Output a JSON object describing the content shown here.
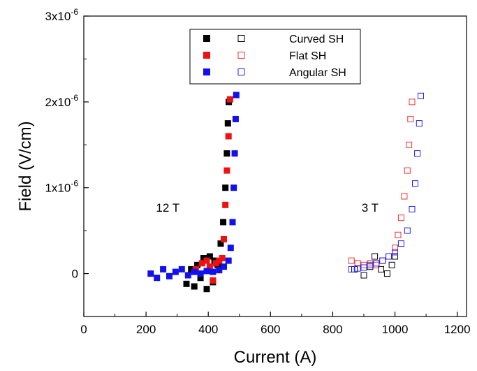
{
  "chart_data": {
    "type": "scatter",
    "xlabel": "Current (A)",
    "ylabel": "Field (V/cm)",
    "xlim": [
      0,
      1230
    ],
    "ylim": [
      -5e-07,
      3e-06
    ],
    "x_ticks": [
      {
        "value": 0,
        "label": "0"
      },
      {
        "value": 200,
        "label": "200"
      },
      {
        "value": 400,
        "label": "400"
      },
      {
        "value": 600,
        "label": "600"
      },
      {
        "value": 800,
        "label": "800"
      },
      {
        "value": 1000,
        "label": "1000"
      },
      {
        "value": 1200,
        "label": "1200"
      }
    ],
    "y_ticks": [
      {
        "value": 0,
        "base": "0",
        "exp": ""
      },
      {
        "value": 1e-06,
        "base": "1x10",
        "exp": "-6"
      },
      {
        "value": 2e-06,
        "base": "2x10",
        "exp": "-6"
      },
      {
        "value": 3e-06,
        "base": "3x10",
        "exp": "-6"
      }
    ],
    "grid": false,
    "legend_position": "top-center",
    "annotations": [
      {
        "text": "12 T",
        "x": 270,
        "y": 7.2e-07
      },
      {
        "text": "3 T",
        "x": 920,
        "y": 7.2e-07
      }
    ],
    "series": [
      {
        "name": "Curved SH",
        "field": "12 T",
        "marker": "filled-square",
        "color": "#000000",
        "points": [
          [
            330,
            -1.2e-07
          ],
          [
            345,
            5e-08
          ],
          [
            355,
            -1.5e-07
          ],
          [
            365,
            1e-07
          ],
          [
            375,
            -5e-08
          ],
          [
            385,
            1.8e-07
          ],
          [
            395,
            -1.8e-07
          ],
          [
            405,
            2e-07
          ],
          [
            415,
            -1e-07
          ],
          [
            420,
            1.5e-07
          ],
          [
            430,
            1e-07
          ],
          [
            440,
            3.5e-07
          ],
          [
            448,
            6e-07
          ],
          [
            455,
            1e-06
          ],
          [
            460,
            1.4e-06
          ],
          [
            463,
            1.75e-06
          ],
          [
            466,
            2e-06
          ]
        ]
      },
      {
        "name": "Flat SH",
        "field": "12 T",
        "marker": "filled-square",
        "color": "#ee1111",
        "points": [
          [
            360,
            5e-08
          ],
          [
            380,
            1.2e-07
          ],
          [
            395,
            1.5e-07
          ],
          [
            405,
            8e-08
          ],
          [
            415,
            -8e-08
          ],
          [
            425,
            1.2e-07
          ],
          [
            435,
            1.5e-07
          ],
          [
            445,
            1.8e-07
          ],
          [
            450,
            4e-07
          ],
          [
            455,
            8e-07
          ],
          [
            460,
            1.2e-06
          ],
          [
            465,
            1.6e-06
          ],
          [
            470,
            2.03e-06
          ]
        ]
      },
      {
        "name": "Angular SH",
        "field": "12 T",
        "marker": "filled-square",
        "color": "#1111ee",
        "points": [
          [
            215,
            0.0
          ],
          [
            235,
            -5e-08
          ],
          [
            255,
            5e-08
          ],
          [
            275,
            -3e-08
          ],
          [
            295,
            2e-08
          ],
          [
            315,
            5e-08
          ],
          [
            335,
            -2e-08
          ],
          [
            355,
            2e-08
          ],
          [
            375,
            0.0
          ],
          [
            395,
            3e-08
          ],
          [
            415,
            2e-08
          ],
          [
            435,
            4e-08
          ],
          [
            450,
            8e-08
          ],
          [
            465,
            1.5e-07
          ],
          [
            472,
            3e-07
          ],
          [
            478,
            6e-07
          ],
          [
            482,
            1e-06
          ],
          [
            485,
            1.4e-06
          ],
          [
            488,
            1.8e-06
          ],
          [
            490,
            2.08e-06
          ]
        ]
      },
      {
        "name": "Curved SH",
        "field": "3 T",
        "marker": "open-square",
        "color": "#000000",
        "points": [
          [
            870,
            5e-08
          ],
          [
            900,
            -2e-08
          ],
          [
            920,
            8e-08
          ],
          [
            935,
            2e-07
          ],
          [
            955,
            5e-08
          ],
          [
            975,
            0.0
          ],
          [
            990,
            1e-07
          ],
          [
            1000,
            2e-07
          ]
        ]
      },
      {
        "name": "Flat SH",
        "field": "3 T",
        "marker": "open-square",
        "color": "#ee3333",
        "points": [
          [
            860,
            1.5e-07
          ],
          [
            880,
            1.2e-07
          ],
          [
            900,
            1e-07
          ],
          [
            920,
            1.2e-07
          ],
          [
            940,
            1e-07
          ],
          [
            960,
            1.5e-07
          ],
          [
            980,
            2e-07
          ],
          [
            1000,
            3e-07
          ],
          [
            1010,
            4.5e-07
          ],
          [
            1020,
            6.5e-07
          ],
          [
            1030,
            9e-07
          ],
          [
            1040,
            1.2e-06
          ],
          [
            1045,
            1.5e-06
          ],
          [
            1050,
            1.8e-06
          ],
          [
            1055,
            2e-06
          ]
        ]
      },
      {
        "name": "Angular SH",
        "field": "3 T",
        "marker": "open-square",
        "color": "#2222ee",
        "points": [
          [
            860,
            5e-08
          ],
          [
            880,
            6e-08
          ],
          [
            900,
            7e-08
          ],
          [
            920,
            1e-07
          ],
          [
            940,
            1.2e-07
          ],
          [
            960,
            1.5e-07
          ],
          [
            980,
            2e-07
          ],
          [
            1000,
            2.5e-07
          ],
          [
            1020,
            3.5e-07
          ],
          [
            1040,
            5e-07
          ],
          [
            1055,
            7.5e-07
          ],
          [
            1065,
            1.05e-06
          ],
          [
            1072,
            1.4e-06
          ],
          [
            1078,
            1.75e-06
          ],
          [
            1083,
            2.07e-06
          ]
        ]
      }
    ],
    "legend": [
      {
        "label": "Curved SH",
        "color_filled": "#000000",
        "color_open": "#000000"
      },
      {
        "label": "Flat SH",
        "color_filled": "#ee1111",
        "color_open": "#ee3333"
      },
      {
        "label": "Angular SH",
        "color_filled": "#1111ee",
        "color_open": "#2222ee"
      }
    ]
  }
}
